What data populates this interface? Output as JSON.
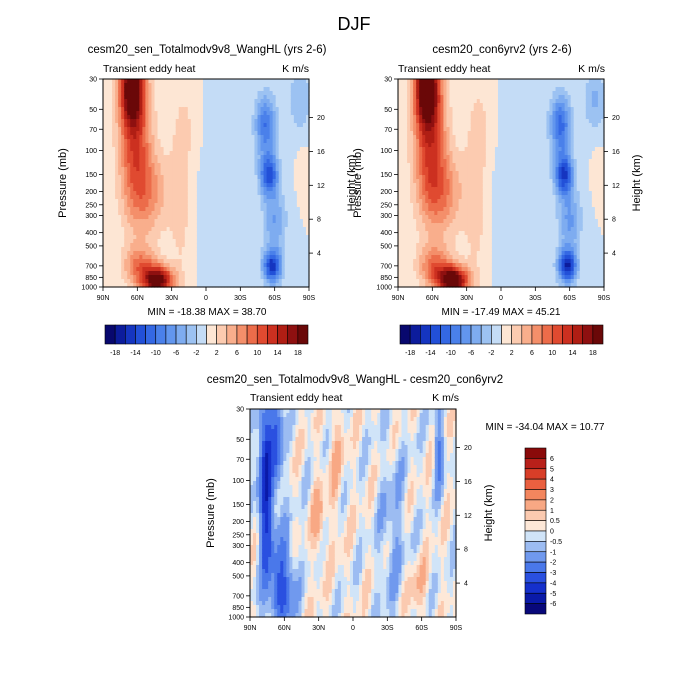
{
  "figure": {
    "title": "DJF"
  },
  "chart_data": [
    {
      "type": "heatmap",
      "id": "panel-a",
      "title": "cesm20_sen_Totalmodv9v8_WangHL (yrs 2-6)",
      "variable": "Transient eddy heat",
      "units": "K m/s",
      "ylabel": "Pressure (mb)",
      "y2label": "Height (km)",
      "x_ticks": [
        "90N",
        "60N",
        "30N",
        "0",
        "30S",
        "60S",
        "90S"
      ],
      "y_ticks": [
        "30",
        "50",
        "70",
        "100",
        "150",
        "200",
        "250",
        "300",
        "400",
        "500",
        "700",
        "850",
        "1000"
      ],
      "y2_ticks": [
        "20",
        "16",
        "12",
        "8",
        "4"
      ],
      "stats": "MIN = -18.38   MAX =  38.70",
      "min": -18.38,
      "max": 38.7,
      "colorbar_labels": [
        "-18",
        "-14",
        "-10",
        "-6",
        "-2",
        "2",
        "6",
        "10",
        "14",
        "18"
      ],
      "colorbar_levels": [
        -20,
        -18,
        -16,
        -14,
        -12,
        -10,
        -8,
        -6,
        -4,
        -2,
        0,
        2,
        4,
        6,
        8,
        10,
        12,
        14,
        16,
        18,
        20
      ],
      "scale": 1.0
    },
    {
      "type": "heatmap",
      "id": "panel-b",
      "title": "cesm20_con6yrv2 (yrs 2-6)",
      "variable": "Transient eddy heat",
      "units": "K m/s",
      "ylabel": "Pressure (mb)",
      "y2label": "Height (km)",
      "x_ticks": [
        "90N",
        "60N",
        "30N",
        "0",
        "30S",
        "60S",
        "90S"
      ],
      "y_ticks": [
        "30",
        "50",
        "70",
        "100",
        "150",
        "200",
        "250",
        "300",
        "400",
        "500",
        "700",
        "850",
        "1000"
      ],
      "y2_ticks": [
        "20",
        "16",
        "12",
        "8",
        "4"
      ],
      "stats": "MIN = -17.49   MAX =  45.21",
      "min": -17.49,
      "max": 45.21,
      "colorbar_labels": [
        "-18",
        "-14",
        "-10",
        "-6",
        "-2",
        "2",
        "6",
        "10",
        "14",
        "18"
      ],
      "colorbar_levels": [
        -20,
        -18,
        -16,
        -14,
        -12,
        -10,
        -8,
        -6,
        -4,
        -2,
        0,
        2,
        4,
        6,
        8,
        10,
        12,
        14,
        16,
        18,
        20
      ],
      "scale": 1.08
    },
    {
      "type": "heatmap",
      "id": "panel-diff",
      "title": "cesm20_sen_Totalmodv9v8_WangHL - cesm20_con6yrv2",
      "variable": "Transient eddy heat",
      "units": "K m/s",
      "ylabel": "Pressure (mb)",
      "y2label": "Height (km)",
      "x_ticks": [
        "90N",
        "60N",
        "30N",
        "0",
        "30S",
        "60S",
        "90S"
      ],
      "y_ticks": [
        "30",
        "50",
        "70",
        "100",
        "150",
        "200",
        "250",
        "300",
        "400",
        "500",
        "700",
        "850",
        "1000"
      ],
      "y2_ticks": [
        "20",
        "16",
        "12",
        "8",
        "4"
      ],
      "stats": "MIN = -34.04   MAX =  10.77",
      "min": -34.04,
      "max": 10.77,
      "colorbar_labels": [
        "6",
        "5",
        "4",
        "3",
        "2",
        "1",
        "0.5",
        "0",
        "-0.5",
        "-1",
        "-2",
        "-3",
        "-4",
        "-5",
        "-6"
      ],
      "colorbar_levels": [
        -7,
        -6,
        -5,
        -4,
        -3,
        -2,
        -1,
        -0.5,
        0,
        0.5,
        1,
        2,
        3,
        4,
        5,
        6,
        7
      ]
    }
  ],
  "colors": {
    "seq20": [
      "#08086e",
      "#0c1c9c",
      "#1535c0",
      "#2250d8",
      "#3468e4",
      "#4a80ea",
      "#6296ee",
      "#7eacf0",
      "#9cc2f2",
      "#c4dcf6",
      "#fde6d4",
      "#fccbb0",
      "#f9ae8c",
      "#f48f6a",
      "#ec6c4a",
      "#e04a30",
      "#cc3020",
      "#b01e14",
      "#8e1010",
      "#6a0808"
    ],
    "div16": [
      "#08087a",
      "#0a1aa8",
      "#1530cc",
      "#2a50e0",
      "#4a78ea",
      "#7099ee",
      "#9cbcf2",
      "#d0e4f8",
      "#fde8d8",
      "#fbcab0",
      "#f8a884",
      "#f3865e",
      "#ea6040",
      "#d83e28",
      "#b8201a",
      "#8a0a0a"
    ]
  }
}
